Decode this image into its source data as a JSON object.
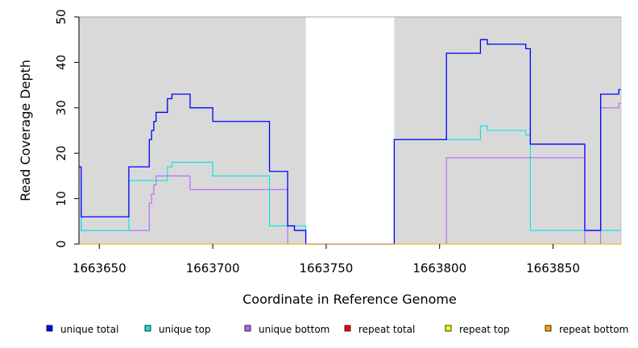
{
  "chart_data": {
    "type": "line",
    "step": true,
    "xlabel": "Coordinate in Reference Genome",
    "ylabel": "Read Coverage Depth",
    "xlim": [
      1663641,
      1663880
    ],
    "ylim": [
      0,
      50
    ],
    "xticks": [
      1663650,
      1663700,
      1663750,
      1663800,
      1663850
    ],
    "xtick_labels": [
      "1663650",
      "1663700",
      "1663750",
      "1663800",
      "1663850"
    ],
    "yticks": [
      0,
      10,
      20,
      30,
      40,
      50
    ],
    "ytick_labels": [
      "0",
      "10",
      "20",
      "30",
      "40",
      "50"
    ],
    "background_regions": [
      {
        "x_start": 1663641,
        "x_end": 1663741,
        "color": "#d9d9d9"
      },
      {
        "x_start": 1663780,
        "x_end": 1663880,
        "color": "#d9d9d9"
      }
    ],
    "legend_position": "bottom",
    "series": [
      {
        "name": "unique total",
        "color": "#0000ff",
        "x": [
          1663641,
          1663642,
          1663642,
          1663663,
          1663663,
          1663672,
          1663672,
          1663673,
          1663673,
          1663674,
          1663674,
          1663675,
          1663675,
          1663678,
          1663678,
          1663680,
          1663680,
          1663682,
          1663682,
          1663690,
          1663690,
          1663694,
          1663694,
          1663700,
          1663700,
          1663725,
          1663725,
          1663733,
          1663733,
          1663736,
          1663736,
          1663738,
          1663738,
          1663741,
          1663741,
          1663780,
          1663780,
          1663803,
          1663803,
          1663818,
          1663818,
          1663821,
          1663821,
          1663838,
          1663838,
          1663840,
          1663840,
          1663864,
          1663864,
          1663871,
          1663871,
          1663879,
          1663879,
          1663880
        ],
        "y": [
          17,
          17,
          6,
          6,
          17,
          17,
          23,
          23,
          25,
          25,
          27,
          27,
          29,
          29,
          29,
          29,
          32,
          32,
          33,
          33,
          30,
          30,
          30,
          30,
          27,
          27,
          16,
          16,
          4,
          4,
          3,
          3,
          3,
          3,
          0,
          0,
          23,
          23,
          42,
          42,
          45,
          45,
          44,
          44,
          43,
          43,
          22,
          22,
          3,
          3,
          33,
          33,
          34,
          34
        ]
      },
      {
        "name": "unique top",
        "color": "#00e5e5",
        "x": [
          1663641,
          1663642,
          1663642,
          1663663,
          1663663,
          1663678,
          1663678,
          1663680,
          1663680,
          1663682,
          1663682,
          1663700,
          1663700,
          1663725,
          1663725,
          1663733,
          1663733,
          1663741,
          1663741,
          1663780,
          1663780,
          1663818,
          1663818,
          1663821,
          1663821,
          1663838,
          1663838,
          1663840,
          1663840,
          1663880
        ],
        "y": [
          14,
          14,
          3,
          3,
          14,
          14,
          14,
          14,
          17,
          17,
          18,
          18,
          15,
          15,
          4,
          4,
          4,
          4,
          0,
          0,
          23,
          23,
          26,
          26,
          25,
          25,
          24,
          24,
          3,
          3
        ]
      },
      {
        "name": "unique bottom",
        "color": "#b266ff",
        "x": [
          1663641,
          1663642,
          1663642,
          1663663,
          1663663,
          1663672,
          1663672,
          1663673,
          1663673,
          1663674,
          1663674,
          1663675,
          1663675,
          1663690,
          1663690,
          1663733,
          1663733,
          1663741,
          1663741,
          1663803,
          1663803,
          1663864,
          1663864,
          1663871,
          1663871,
          1663879,
          1663879,
          1663880
        ],
        "y": [
          14,
          14,
          3,
          3,
          3,
          3,
          9,
          9,
          11,
          11,
          13,
          13,
          15,
          15,
          12,
          12,
          0,
          0,
          0,
          0,
          19,
          19,
          0,
          0,
          30,
          30,
          31,
          31
        ]
      },
      {
        "name": "repeat total",
        "color": "#ff0000",
        "x": [
          1663641,
          1663880
        ],
        "y": [
          0,
          0
        ]
      },
      {
        "name": "repeat top",
        "color": "#ffff00",
        "x": [
          1663641,
          1663880
        ],
        "y": [
          0,
          0
        ]
      },
      {
        "name": "repeat bottom",
        "color": "#ffa500",
        "x": [
          1663641,
          1663880
        ],
        "y": [
          0,
          0
        ]
      }
    ]
  }
}
